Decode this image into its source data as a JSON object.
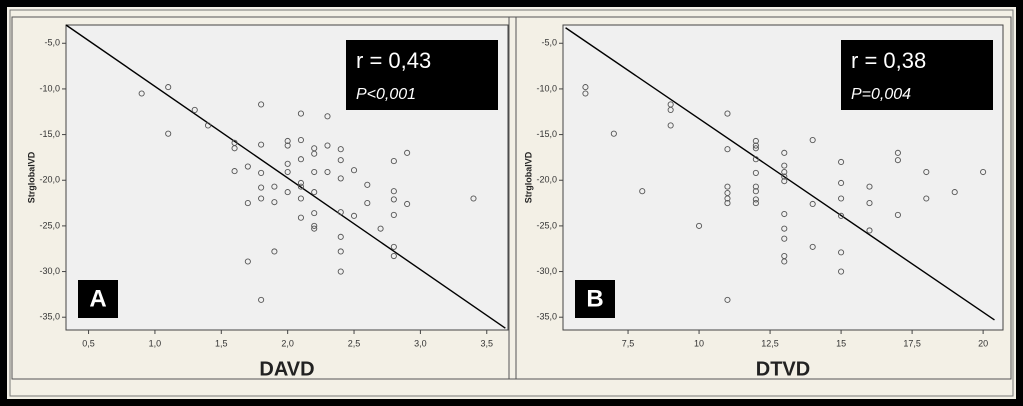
{
  "chart_data": [
    {
      "type": "scatter",
      "panel_label": "A",
      "x_label": "DAVD",
      "y_label": "StrglobalVD",
      "annotation": {
        "r": "r = 0,43",
        "p": "P<0,001"
      },
      "color": "#555555",
      "xlim": [
        0.33,
        3.66
      ],
      "ylim": [
        -36.4,
        -3.0
      ],
      "xticks": [
        {
          "value": 0.5,
          "label": "0,5"
        },
        {
          "value": 1.0,
          "label": "1,0"
        },
        {
          "value": 1.5,
          "label": "1,5"
        },
        {
          "value": 2.0,
          "label": "2,0"
        },
        {
          "value": 2.5,
          "label": "2,5"
        },
        {
          "value": 3.0,
          "label": "3,0"
        },
        {
          "value": 3.5,
          "label": "3,5"
        }
      ],
      "yticks": [
        {
          "value": -5,
          "label": "-5,0"
        },
        {
          "value": -10,
          "label": "-10,0"
        },
        {
          "value": -15,
          "label": "-15,0"
        },
        {
          "value": -20,
          "label": "-20,0"
        },
        {
          "value": -25,
          "label": "-25,0"
        },
        {
          "value": -30,
          "label": "-30,0"
        },
        {
          "value": -35,
          "label": "-35,0"
        }
      ],
      "fit_line": {
        "x": [
          0.33,
          3.64
        ],
        "y": [
          -3.0,
          -36.2
        ]
      },
      "x": [
        0.9,
        1.1,
        1.1,
        1.3,
        1.4,
        1.6,
        1.6,
        1.6,
        1.7,
        1.7,
        1.7,
        1.8,
        1.8,
        1.8,
        1.8,
        1.8,
        1.8,
        1.9,
        1.9,
        1.9,
        2.0,
        2.0,
        2.0,
        2.0,
        2.0,
        2.1,
        2.1,
        2.1,
        2.1,
        2.1,
        2.1,
        2.1,
        2.2,
        2.2,
        2.2,
        2.2,
        2.2,
        2.2,
        2.2,
        2.3,
        2.3,
        2.3,
        2.4,
        2.4,
        2.4,
        2.4,
        2.4,
        2.4,
        2.4,
        2.5,
        2.5,
        2.6,
        2.6,
        2.7,
        2.8,
        2.8,
        2.8,
        2.8,
        2.8,
        2.8,
        2.9,
        2.9,
        3.4
      ],
      "values": [
        -10.5,
        -9.8,
        -14.9,
        -12.3,
        -14.0,
        -15.9,
        -16.5,
        -19.0,
        -18.5,
        -22.5,
        -28.9,
        -11.7,
        -16.1,
        -19.2,
        -20.8,
        -22.0,
        -33.1,
        -20.7,
        -22.4,
        -27.8,
        -15.7,
        -16.2,
        -18.2,
        -19.1,
        -21.3,
        -12.7,
        -15.6,
        -17.7,
        -20.3,
        -20.7,
        -22.0,
        -24.1,
        -16.5,
        -17.1,
        -19.1,
        -21.3,
        -23.6,
        -25.0,
        -25.3,
        -13.0,
        -16.2,
        -19.1,
        -16.6,
        -17.8,
        -19.8,
        -23.5,
        -26.2,
        -27.8,
        -30.0,
        -18.9,
        -23.9,
        -20.5,
        -22.5,
        -25.3,
        -17.9,
        -21.2,
        -22.1,
        -23.8,
        -27.3,
        -28.3,
        -17.0,
        -22.6,
        -22.0
      ]
    },
    {
      "type": "scatter",
      "panel_label": "B",
      "x_label": "DTVD",
      "y_label": "StrglobalVD",
      "annotation": {
        "r": "r = 0,38",
        "p": "P=0,004"
      },
      "color": "#555555",
      "xlim": [
        5.21,
        20.7
      ],
      "ylim": [
        -36.4,
        -3.0
      ],
      "xticks": [
        {
          "value": 7.5,
          "label": "7,5"
        },
        10,
        {
          "value": 12.5,
          "label": "12,5"
        },
        15,
        {
          "value": 17.5,
          "label": "17,5"
        },
        20
      ],
      "yticks": [
        {
          "value": -5,
          "label": "-5,0"
        },
        {
          "value": -10,
          "label": "-10,0"
        },
        {
          "value": -15,
          "label": "-15,0"
        },
        {
          "value": -20,
          "label": "-20,0"
        },
        {
          "value": -25,
          "label": "-25,0"
        },
        {
          "value": -30,
          "label": "-30,0"
        },
        {
          "value": -35,
          "label": "-35,0"
        }
      ],
      "fit_line": {
        "x": [
          5.3,
          20.4
        ],
        "y": [
          -3.3,
          -35.3
        ]
      },
      "x": [
        6,
        6,
        7,
        8,
        9,
        9,
        9,
        10,
        11,
        11,
        11,
        11,
        11,
        11,
        11,
        12,
        12,
        12,
        12,
        12,
        12,
        12,
        12,
        12,
        13,
        13,
        13,
        13,
        13,
        13,
        13,
        13,
        13,
        13,
        14,
        14,
        14,
        15,
        15,
        15,
        15,
        15,
        15,
        16,
        16,
        16,
        17,
        17,
        17,
        18,
        18,
        19,
        20
      ],
      "values": [
        -9.8,
        -10.5,
        -14.9,
        -21.2,
        -11.7,
        -12.3,
        -14.0,
        -25.0,
        -12.7,
        -16.6,
        -20.7,
        -21.4,
        -22.0,
        -22.5,
        -33.1,
        -15.7,
        -16.2,
        -16.5,
        -17.7,
        -19.2,
        -20.7,
        -21.2,
        -22.1,
        -22.5,
        -17.0,
        -18.4,
        -19.1,
        -19.6,
        -20.1,
        -23.7,
        -25.3,
        -26.4,
        -28.3,
        -28.9,
        -15.6,
        -22.6,
        -27.3,
        -18.0,
        -20.3,
        -22.0,
        -23.9,
        -27.9,
        -30.0,
        -20.7,
        -22.5,
        -25.5,
        -17.0,
        -17.8,
        -23.8,
        -19.1,
        -22.0,
        -21.3,
        -19.1
      ]
    }
  ]
}
